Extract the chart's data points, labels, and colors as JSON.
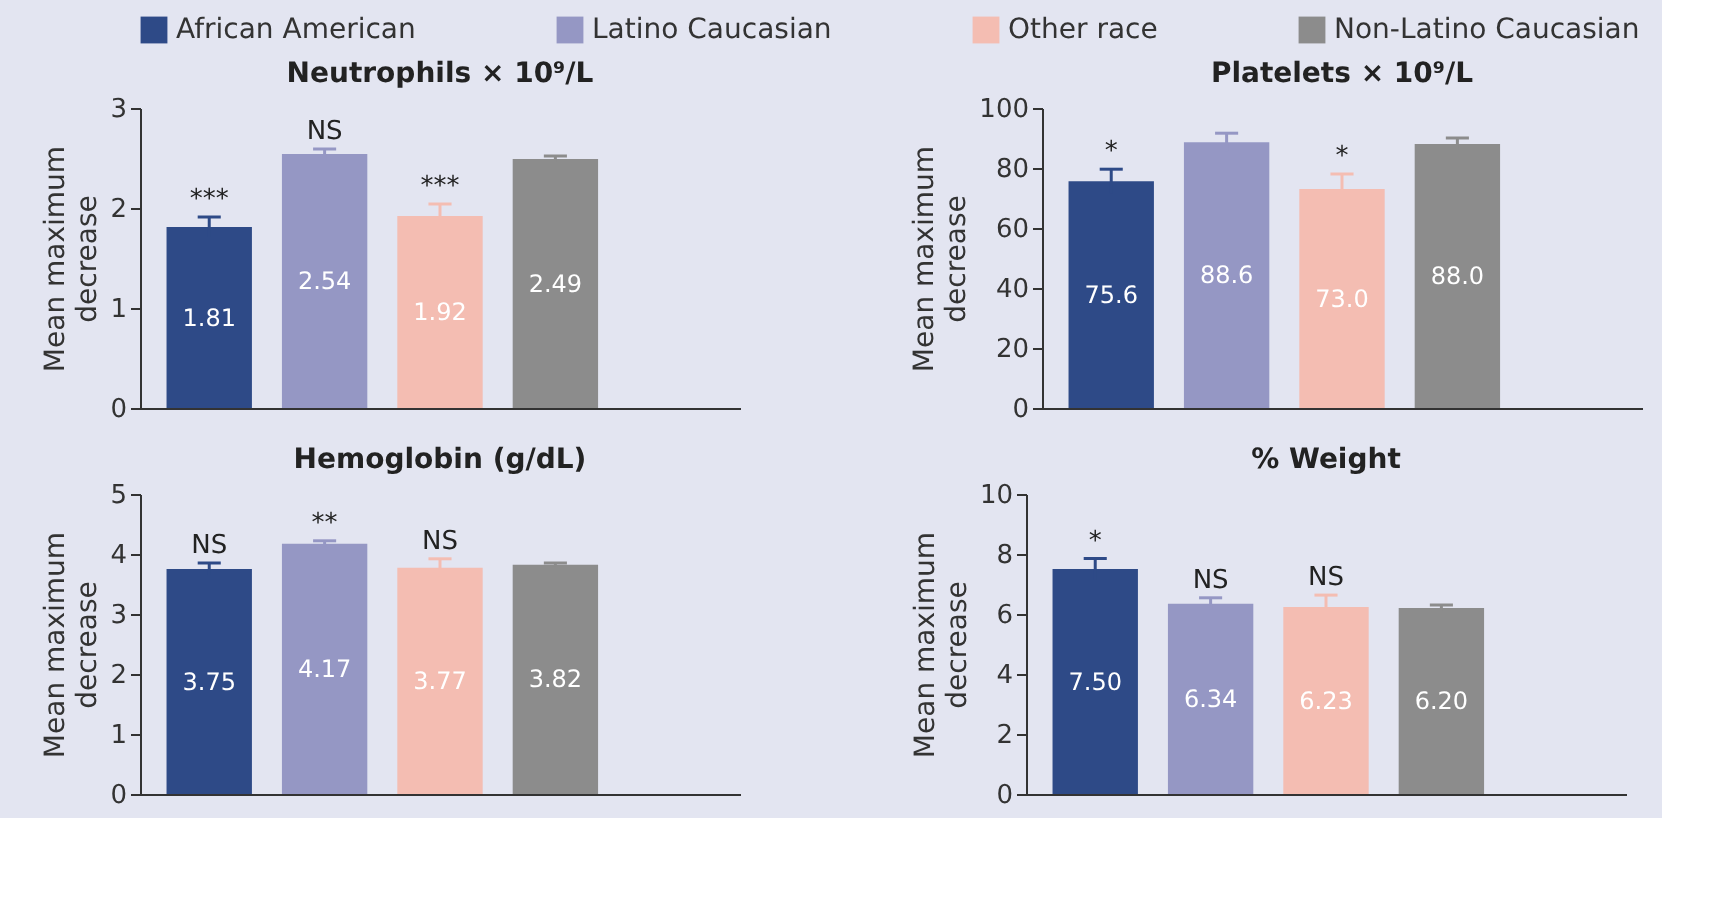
{
  "chart_data": [
    {
      "type": "bar",
      "title": "Neutrophils × 10⁹/L",
      "ylabel": "Mean maximum decrease",
      "categories": [
        null
      ],
      "ylim": [
        0,
        3
      ],
      "yticks": [
        0,
        1,
        2,
        3
      ],
      "tick_labels": "y",
      "legend": "top",
      "series": [
        {
          "name": "African American",
          "color": "#2e4a87",
          "values": [
            1.81
          ],
          "value_labels": [
            "1.81"
          ],
          "errors": [
            0.1
          ]
        },
        {
          "name": "Latino Caucasian",
          "color": "#9597c4",
          "values": [
            2.54
          ],
          "value_labels": [
            "2.54"
          ],
          "errors": [
            0.05
          ]
        },
        {
          "name": "Other race",
          "color": "#f4bdb2",
          "values": [
            1.92
          ],
          "value_labels": [
            "1.92"
          ],
          "errors": [
            0.12
          ]
        },
        {
          "name": "Non-Latino Caucasian",
          "color": "#8c8c8c",
          "values": [
            2.49
          ],
          "value_labels": [
            "2.49"
          ],
          "errors": [
            0.03
          ]
        }
      ],
      "annotations": [
        {
          "text": "***",
          "y": 1.81
        },
        {
          "text": "NS",
          "y": 2.54
        },
        {
          "text": "***",
          "y": 1.92
        }
      ]
    },
    {
      "type": "bar",
      "title": "Platelets × 10⁹/L",
      "ylabel": "Mean maximum decrease",
      "categories": [
        null
      ],
      "ylim": [
        0,
        100
      ],
      "yticks": [
        0,
        20,
        40,
        60,
        80,
        100
      ],
      "tick_labels": "y",
      "series": [
        {
          "color": "#2e4a87",
          "values": [
            75.6
          ],
          "value_labels": [
            "75.6"
          ],
          "errors": [
            4
          ]
        },
        {
          "color": "#9597c4",
          "values": [
            88.6
          ],
          "value_labels": [
            "88.6"
          ],
          "errors": [
            3
          ]
        },
        {
          "color": "#f4bdb2",
          "values": [
            73.0
          ],
          "value_labels": [
            "73.0"
          ],
          "errors": [
            5
          ]
        },
        {
          "color": "#8c8c8c",
          "values": [
            88.0
          ],
          "value_labels": [
            "88.0"
          ],
          "errors": [
            2
          ]
        }
      ],
      "annotations": [
        {
          "text": "*",
          "y": 75.6
        },
        {
          "text": "*",
          "y": 73.0
        }
      ]
    },
    {
      "type": "bar",
      "title": "Hemoglobin (g/dL)",
      "ylabel": "Mean maximum decrease",
      "categories": [
        null
      ],
      "ylim": [
        0,
        5
      ],
      "yticks": [
        0,
        1,
        2,
        3,
        4,
        5
      ],
      "tick_labels": "y",
      "series": [
        {
          "color": "#2e4a87",
          "values": [
            3.75
          ],
          "value_labels": [
            "3.75"
          ],
          "errors": [
            0.1
          ]
        },
        {
          "color": "#9597c4",
          "values": [
            4.17
          ],
          "value_labels": [
            "4.17"
          ],
          "errors": [
            0.05
          ]
        },
        {
          "color": "#f4bdb2",
          "values": [
            3.77
          ],
          "value_labels": [
            "3.77"
          ],
          "errors": [
            0.15
          ]
        },
        {
          "color": "#8c8c8c",
          "values": [
            3.82
          ],
          "value_labels": [
            "3.82"
          ],
          "errors": [
            0.03
          ]
        }
      ],
      "annotations": [
        {
          "text": "NS",
          "y": 3.75
        },
        {
          "text": "**",
          "y": 4.17
        },
        {
          "text": "NS",
          "y": 3.77
        }
      ]
    },
    {
      "type": "bar",
      "title": "% Weight",
      "ylabel": "Mean maximum decrease",
      "categories": [
        null
      ],
      "ylim": [
        0,
        10
      ],
      "yticks": [
        0,
        2,
        4,
        6,
        8,
        10
      ],
      "tick_labels": "y",
      "series": [
        {
          "color": "#2e4a87",
          "values": [
            7.5
          ],
          "value_labels": [
            "7.50"
          ],
          "errors": [
            0.35
          ]
        },
        {
          "color": "#9597c4",
          "values": [
            6.34
          ],
          "value_labels": [
            "6.34"
          ],
          "errors": [
            0.2
          ]
        },
        {
          "color": "#f4bdb2",
          "values": [
            6.23
          ],
          "value_labels": [
            "6.23"
          ],
          "errors": [
            0.4
          ]
        },
        {
          "color": "#8c8c8c",
          "values": [
            6.2
          ],
          "value_labels": [
            "6.20"
          ],
          "errors": [
            0.1
          ]
        }
      ],
      "annotations": [
        {
          "text": "*",
          "y": 7.5
        },
        {
          "text": "NS",
          "y": 6.34
        },
        {
          "text": "NS",
          "y": 6.23
        }
      ]
    }
  ]
}
